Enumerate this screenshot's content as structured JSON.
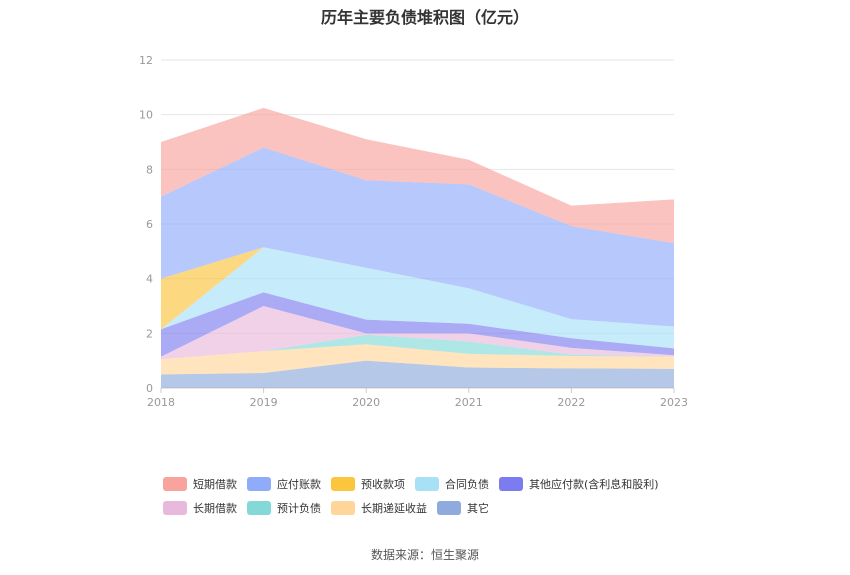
{
  "title": "历年主要负债堆积图（亿元）",
  "source": "数据来源：恒生聚源",
  "chart_data": {
    "type": "area",
    "stacked": true,
    "categories": [
      "2018",
      "2019",
      "2020",
      "2021",
      "2022",
      "2023"
    ],
    "ylim": [
      0,
      12
    ],
    "yticks": [
      "0",
      "2",
      "4",
      "6",
      "8",
      "10",
      "12"
    ],
    "grid": true,
    "legend_position": "bottom",
    "series": [
      {
        "name": "其它",
        "color": "#8faadc",
        "values": [
          0.5,
          0.55,
          1.0,
          0.75,
          0.72,
          0.7
        ]
      },
      {
        "name": "长期递延收益",
        "color": "#ffd59a",
        "values": [
          0.55,
          0.8,
          0.6,
          0.5,
          0.45,
          0.45
        ]
      },
      {
        "name": "预计负债",
        "color": "#84d8d8",
        "values": [
          0.0,
          0.0,
          0.35,
          0.45,
          0.05,
          0.0
        ]
      },
      {
        "name": "长期借款",
        "color": "#e8b9dc",
        "values": [
          0.1,
          1.65,
          0.05,
          0.3,
          0.25,
          0.05
        ]
      },
      {
        "name": "其他应付款(含利息和股利)",
        "color": "#7c7cf0",
        "values": [
          1.0,
          0.5,
          0.5,
          0.35,
          0.35,
          0.25
        ]
      },
      {
        "name": "合同负债",
        "color": "#a8e0f8",
        "values": [
          0.0,
          1.65,
          1.9,
          1.3,
          0.7,
          0.8
        ]
      },
      {
        "name": "预收款项",
        "color": "#fbc53e",
        "values": [
          1.85,
          0.0,
          0.0,
          0.0,
          0.0,
          0.0
        ]
      },
      {
        "name": "应付账款",
        "color": "#8fabfa",
        "values": [
          3.0,
          3.65,
          3.2,
          3.8,
          3.4,
          3.05
        ]
      },
      {
        "name": "短期借款",
        "color": "#f8a39d",
        "values": [
          2.0,
          1.45,
          1.5,
          0.9,
          0.75,
          1.6
        ]
      }
    ]
  },
  "legend": {
    "row1": [
      {
        "label": "短期借款",
        "color": "#f8a39d"
      },
      {
        "label": "应付账款",
        "color": "#8fabfa"
      },
      {
        "label": "预收款项",
        "color": "#fbc53e"
      },
      {
        "label": "合同负债",
        "color": "#a8e0f8"
      },
      {
        "label": "其他应付款(含利息和股利)",
        "color": "#7c7cf0"
      }
    ],
    "row2": [
      {
        "label": "长期借款",
        "color": "#e8b9dc"
      },
      {
        "label": "预计负债",
        "color": "#84d8d8"
      },
      {
        "label": "长期递延收益",
        "color": "#ffd59a"
      },
      {
        "label": "其它",
        "color": "#8faadc"
      }
    ]
  }
}
